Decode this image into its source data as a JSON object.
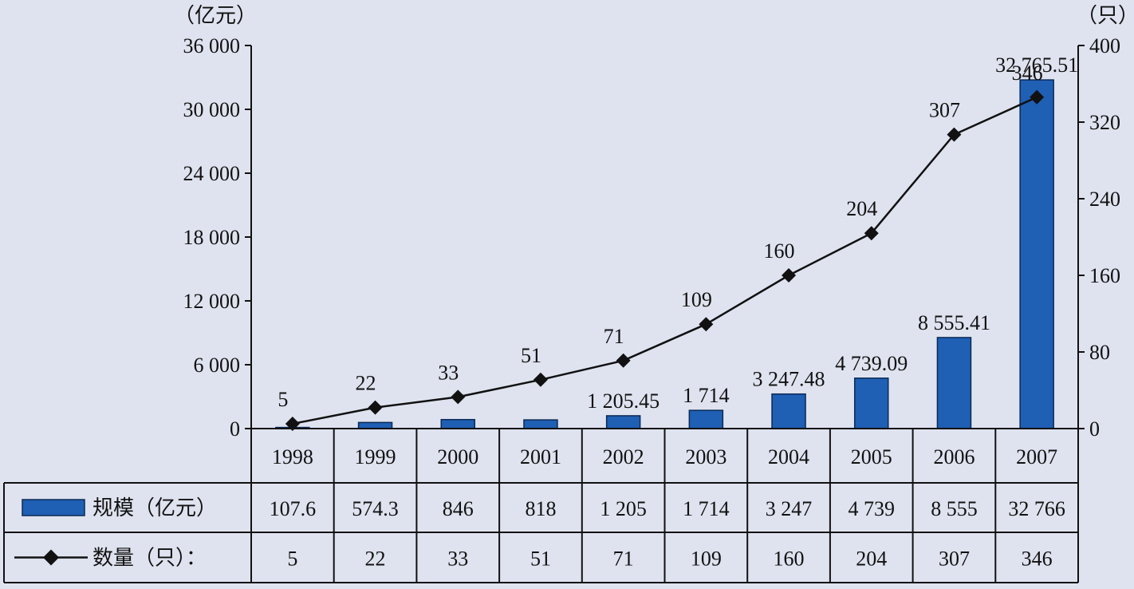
{
  "chart_data": {
    "type": "bar+line",
    "categories": [
      "1998",
      "1999",
      "2000",
      "2001",
      "2002",
      "2003",
      "2004",
      "2005",
      "2006",
      "2007"
    ],
    "series": [
      {
        "name": "规模（亿元）",
        "type": "bar",
        "axis": "left",
        "values": [
          107.6,
          574.3,
          846,
          818,
          1205.45,
          1714,
          3247.48,
          4739.09,
          8555.41,
          32765.51
        ],
        "data_labels": [
          "",
          "",
          "",
          "",
          "1 205.45",
          "1 714",
          "3 247.48",
          "4 739.09",
          "8 555.41",
          "32 765.51"
        ],
        "table_values": [
          "107.6",
          "574.3",
          "846",
          "818",
          "1 205",
          "1 714",
          "3 247",
          "4 739",
          "8 555",
          "32 766"
        ]
      },
      {
        "name": "数量（只）：",
        "type": "line",
        "axis": "right",
        "values": [
          5,
          22,
          33,
          51,
          71,
          109,
          160,
          204,
          307,
          346
        ],
        "data_labels": [
          "5",
          "22",
          "33",
          "51",
          "71",
          "109",
          "160",
          "204",
          "307",
          "346"
        ],
        "table_values": [
          "5",
          "22",
          "33",
          "51",
          "71",
          "109",
          "160",
          "204",
          "307",
          "346"
        ]
      }
    ],
    "left_axis": {
      "unit": "（亿元）",
      "ylim": [
        0,
        36000
      ],
      "ticks": [
        0,
        6000,
        12000,
        18000,
        24000,
        30000,
        36000
      ],
      "tick_labels": [
        "0",
        "6 000",
        "12 000",
        "18 000",
        "24 000",
        "30 000",
        "36 000"
      ]
    },
    "right_axis": {
      "unit": "（只）",
      "ylim": [
        0,
        400
      ],
      "ticks": [
        0,
        80,
        160,
        240,
        320,
        400
      ],
      "tick_labels": [
        "0",
        "80",
        "160",
        "240",
        "320",
        "400"
      ]
    },
    "colors": {
      "bar": "#1f5fb4",
      "bar_edge": "#0b2a55",
      "line": "#111111",
      "background": "#dfe3ef"
    },
    "grid": false,
    "legend": "data-table-below"
  }
}
